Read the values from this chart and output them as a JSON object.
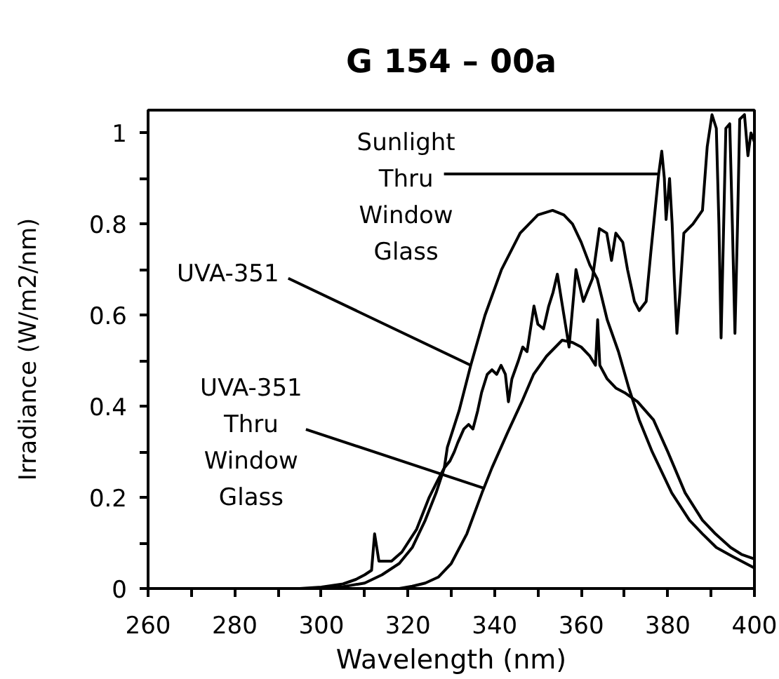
{
  "chart_data": {
    "type": "line",
    "title": "G 154 – 00a",
    "xlabel": "Wavelength (nm)",
    "ylabel": "Irradiance (W/m2/nm)",
    "xlim": [
      260,
      400
    ],
    "ylim": [
      0,
      1.05
    ],
    "xticks": [
      260,
      {
        "value": 270,
        "label": null
      },
      280,
      {
        "value": 290,
        "label": null
      },
      300,
      {
        "value": 310,
        "label": null
      },
      320,
      {
        "value": 330,
        "label": null
      },
      340,
      {
        "value": 350,
        "label": null
      },
      360,
      {
        "value": 370,
        "label": null
      },
      380,
      {
        "value": 390,
        "label": null
      },
      400
    ],
    "yticks": [
      0,
      {
        "value": 0.1,
        "label": null
      },
      0.2,
      {
        "value": 0.3,
        "label": null
      },
      0.4,
      {
        "value": 0.5,
        "label": null
      },
      0.6,
      {
        "value": 0.7,
        "label": null
      },
      0.8,
      {
        "value": 0.9,
        "label": null
      },
      1
    ],
    "grid": false,
    "line_style": "solid",
    "series": [
      {
        "color": "#000000",
        "x": [
          300,
          305,
          310,
          314,
          318,
          321,
          324,
          326.5,
          328.4,
          329.7,
          330.7,
          331.5,
          332.9,
          334,
          335,
          336.1,
          337,
          338.3,
          339.4,
          340.5,
          341.5,
          342.5,
          343.2,
          344,
          345.5,
          346.5,
          347.5,
          349.1,
          350,
          351.3,
          352.5,
          353.5,
          354.5,
          355.5,
          357.2,
          358.8,
          360.5,
          362.6,
          364.2,
          365.9,
          367,
          368,
          369.6,
          370.7,
          372.3,
          373.4,
          375,
          376.1,
          377.9,
          378.6,
          379.2,
          379.6,
          380.4,
          381,
          381.5,
          382.1,
          382.8,
          383.7,
          385.8,
          388,
          389.1,
          390.2,
          391.2,
          391.8,
          392.3,
          392.9,
          393.4,
          394.3,
          394.9,
          395.5,
          396.1,
          396.6,
          397.7,
          398.5,
          399.2,
          400
        ],
        "values": [
          0,
          0.004,
          0.012,
          0.03,
          0.055,
          0.09,
          0.15,
          0.21,
          0.265,
          0.28,
          0.3,
          0.32,
          0.35,
          0.36,
          0.35,
          0.39,
          0.43,
          0.47,
          0.48,
          0.47,
          0.49,
          0.47,
          0.41,
          0.46,
          0.5,
          0.53,
          0.52,
          0.62,
          0.58,
          0.57,
          0.62,
          0.65,
          0.69,
          0.63,
          0.53,
          0.7,
          0.63,
          0.68,
          0.79,
          0.78,
          0.72,
          0.78,
          0.76,
          0.7,
          0.63,
          0.61,
          0.63,
          0.74,
          0.91,
          0.96,
          0.9,
          0.81,
          0.9,
          0.8,
          0.68,
          0.56,
          0.65,
          0.78,
          0.8,
          0.83,
          0.97,
          1.04,
          1.01,
          0.8,
          0.55,
          0.8,
          1.01,
          1.02,
          0.8,
          0.56,
          0.8,
          1.03,
          1.04,
          0.95,
          1.0,
          0.98
        ]
      },
      {
        "color": "#000000",
        "x": [
          295,
          300,
          305,
          308,
          310,
          311.6,
          312.3,
          313.3,
          316.2,
          318.6,
          322,
          324.9,
          327,
          328.4,
          329.1,
          331.8,
          334.5,
          337.8,
          341.6,
          345.9,
          350,
          353.4,
          356,
          358,
          360,
          362,
          363.7,
          366,
          368.6,
          371,
          373.4,
          376.4,
          380.9,
          385,
          388,
          391.2,
          395,
          400
        ],
        "values": [
          0,
          0.003,
          0.01,
          0.02,
          0.03,
          0.04,
          0.12,
          0.06,
          0.06,
          0.08,
          0.13,
          0.2,
          0.24,
          0.265,
          0.31,
          0.39,
          0.49,
          0.6,
          0.7,
          0.78,
          0.82,
          0.83,
          0.82,
          0.8,
          0.76,
          0.71,
          0.68,
          0.59,
          0.52,
          0.44,
          0.37,
          0.3,
          0.21,
          0.15,
          0.12,
          0.09,
          0.07,
          0.045
        ]
      },
      {
        "color": "#000000",
        "x": [
          318,
          321,
          324,
          327,
          330,
          333.6,
          337.1,
          339.4,
          342.9,
          346.3,
          349,
          352,
          355.6,
          358,
          360,
          362,
          363.3,
          363.8,
          364.3,
          366,
          368,
          370,
          373,
          376.7,
          380,
          384,
          388,
          391,
          394.5,
          397,
          400
        ],
        "values": [
          0,
          0.005,
          0.012,
          0.025,
          0.055,
          0.12,
          0.21,
          0.265,
          0.34,
          0.41,
          0.47,
          0.51,
          0.545,
          0.54,
          0.53,
          0.51,
          0.49,
          0.59,
          0.49,
          0.46,
          0.44,
          0.43,
          0.41,
          0.37,
          0.3,
          0.21,
          0.15,
          0.12,
          0.09,
          0.075,
          0.065
        ]
      }
    ],
    "annotations": [
      {
        "text": "Sunlight Thru Window Glass",
        "x": 377.9,
        "y": 0.91
      },
      {
        "text": "UVA-351",
        "x": 334.5,
        "y": 0.49
      },
      {
        "text": "UVA-351 Thru Window Glass",
        "x": 337.6,
        "y": 0.22
      }
    ]
  }
}
